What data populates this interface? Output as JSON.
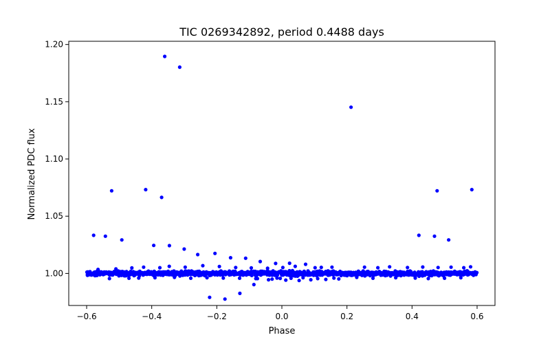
{
  "chart_data": {
    "type": "scatter",
    "title": "TIC 0269342892, period 0.4488 days",
    "xlabel": "Phase",
    "ylabel": "Normalized PDC flux",
    "xlim": [
      -0.655,
      0.655
    ],
    "ylim": [
      0.972,
      1.2028
    ],
    "xticks": [
      -0.6,
      -0.4,
      -0.2,
      0.0,
      0.2,
      0.4,
      0.6
    ],
    "xtick_labels": [
      "−0.6",
      "−0.4",
      "−0.2",
      "0.0",
      "0.2",
      "0.4",
      "0.6"
    ],
    "yticks": [
      1.0,
      1.05,
      1.1,
      1.15,
      1.2
    ],
    "ytick_labels": [
      "1.00",
      "1.05",
      "1.10",
      "1.15",
      "1.20"
    ],
    "grid": false,
    "marker_color": "#0000ff",
    "series": [
      {
        "name": "flux",
        "x": [
          -0.5785,
          -0.5232,
          -0.5423,
          -0.4919,
          -0.4185,
          -0.3601,
          -0.3696,
          -0.3139,
          -0.3938,
          -0.3457,
          -0.3003,
          -0.2586,
          -0.2056,
          -0.1576,
          -0.1114,
          -0.0665,
          -0.0192,
          0.0237,
          0.2125,
          0.4211,
          0.469,
          0.4771,
          0.5125,
          0.5839,
          -0.222,
          -0.175,
          -0.129,
          -0.086,
          -0.041,
          -0.005,
          -0.565,
          -0.51,
          -0.461,
          -0.425,
          -0.375,
          -0.346,
          -0.297,
          -0.243,
          -0.192,
          -0.142,
          -0.094,
          -0.044,
          0.003,
          0.041,
          0.073,
          0.102,
          0.121,
          0.154,
          0.254,
          0.295,
          0.331,
          0.386,
          0.433,
          0.48,
          0.52,
          0.559,
          0.58,
          -0.03,
          0.012,
          0.053,
          0.089,
          0.135,
          0.175,
          -0.075,
          -0.015,
          0.028,
          0.065,
          0.11,
          0.16,
          0.23,
          0.28,
          0.35,
          0.41,
          0.45,
          0.5,
          0.55,
          -0.53,
          -0.47,
          -0.44,
          -0.39,
          -0.33,
          -0.28,
          -0.23,
          -0.18,
          -0.13,
          -0.08
        ],
        "y": [
          1.0333,
          1.0722,
          1.0325,
          1.0293,
          1.0732,
          1.1896,
          1.0664,
          1.1802,
          1.0245,
          1.0243,
          1.0213,
          1.0165,
          1.0175,
          1.0137,
          1.0133,
          1.0104,
          1.0087,
          1.0089,
          1.1452,
          1.0333,
          1.0325,
          1.0722,
          1.0293,
          1.0732,
          0.9791,
          0.9776,
          0.9826,
          0.9903,
          0.9945,
          0.9957,
          1.0035,
          1.004,
          1.0048,
          1.0055,
          1.005,
          1.0062,
          1.0055,
          1.0068,
          1.006,
          1.0052,
          1.0048,
          1.0045,
          1.0052,
          1.0062,
          1.008,
          1.005,
          1.0053,
          1.0055,
          1.0055,
          1.005,
          1.0058,
          1.0052,
          1.0056,
          1.0052,
          1.0055,
          1.005,
          1.0058,
          0.995,
          0.9942,
          0.9938,
          0.9945,
          0.9948,
          0.9952,
          0.9955,
          0.996,
          0.9958,
          0.9962,
          0.9955,
          0.996,
          0.9965,
          0.9958,
          0.9962,
          0.996,
          0.9955,
          0.9958,
          0.9962,
          0.9955,
          0.9958,
          0.996,
          0.9962,
          0.9965,
          0.9958,
          0.9962,
          0.996,
          0.9958,
          0.9955
        ]
      }
    ],
    "band": {
      "description_free": true,
      "x_range": [
        -0.6,
        0.6
      ],
      "center": 1.0,
      "spread": 0.0028,
      "count": 1500
    }
  }
}
